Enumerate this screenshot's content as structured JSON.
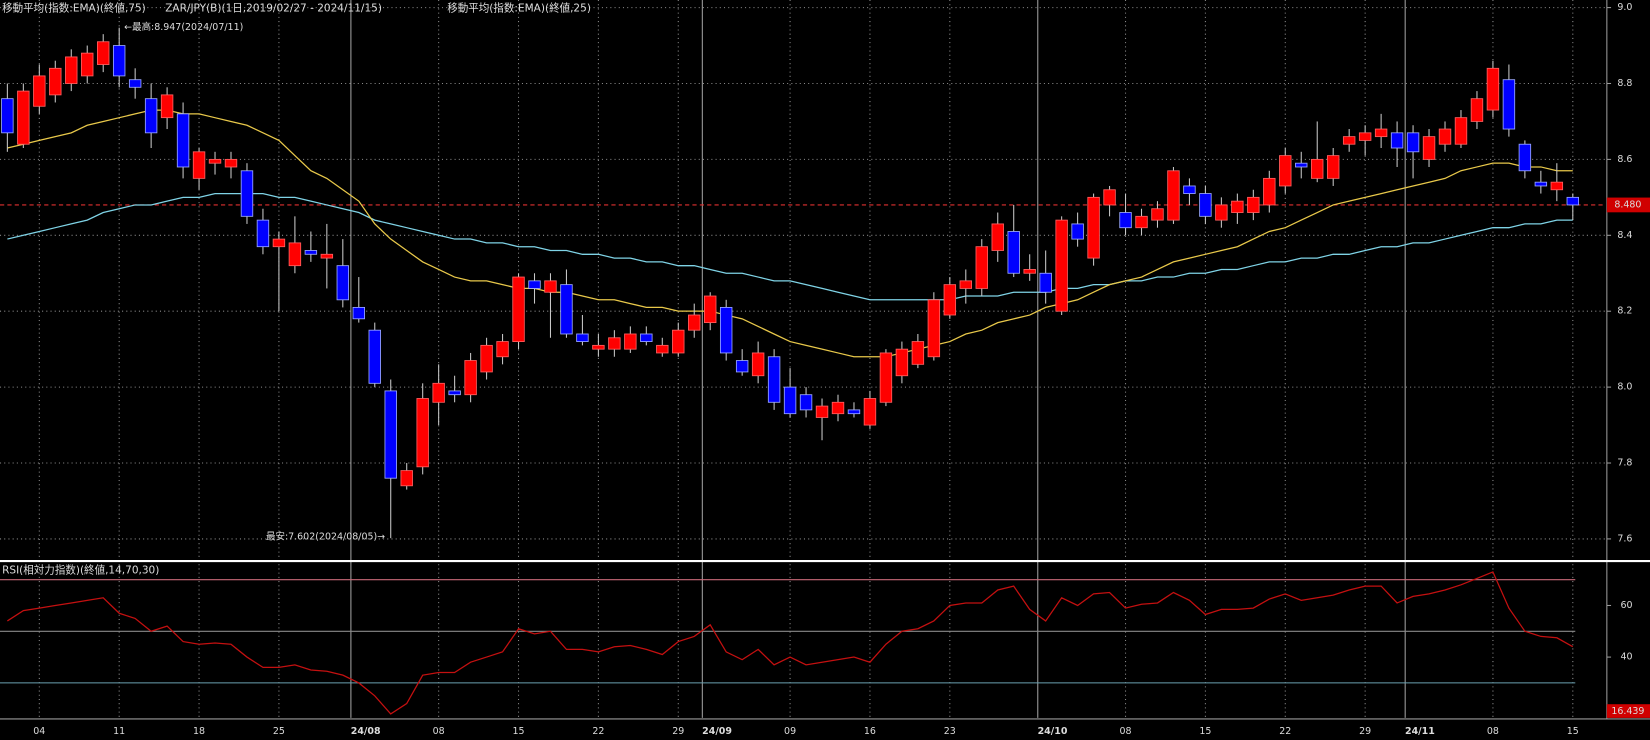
{
  "chart_data": {
    "type": "candlestick",
    "title": "ZAR/JPY(B)(1日,2019/02/27 - 2024/11/15)",
    "annotations": [
      "←最高:8.947(2024/07/11)",
      "最安:7.602(2024/08/05)→"
    ],
    "up_color": "#ff0000",
    "down_color": "#0000ff",
    "grid": true,
    "ylim": [
      7.55,
      9.02
    ],
    "yticks": [
      7.6,
      7.8,
      {
        "value": 8,
        "label": "8.0"
      },
      8.2,
      8.4,
      8.6,
      8.8,
      {
        "value": 9,
        "label": "9.0"
      }
    ],
    "current_price": {
      "value": 8.48,
      "label": "8.480"
    },
    "categories": [
      null,
      null,
      "04",
      null,
      null,
      null,
      null,
      "11",
      null,
      null,
      null,
      null,
      "18",
      null,
      null,
      null,
      null,
      "25",
      null,
      null,
      null,
      null,
      "24/08",
      null,
      null,
      null,
      null,
      "08",
      null,
      null,
      null,
      null,
      "15",
      null,
      null,
      null,
      null,
      "22",
      null,
      null,
      null,
      null,
      "29",
      null,
      "24/09",
      null,
      null,
      null,
      null,
      "09",
      null,
      null,
      null,
      null,
      "16",
      null,
      null,
      null,
      null,
      "23",
      null,
      null,
      null,
      null,
      null,
      "24/10",
      null,
      null,
      null,
      null,
      "08",
      null,
      null,
      null,
      null,
      "15",
      null,
      null,
      null,
      null,
      "22",
      null,
      null,
      null,
      null,
      "29",
      null,
      null,
      "24/11",
      null,
      null,
      null,
      null,
      "08",
      null,
      null,
      null,
      null,
      "15"
    ],
    "open": [
      8.76,
      8.64,
      8.74,
      8.77,
      8.8,
      8.82,
      8.85,
      8.9,
      8.81,
      8.76,
      8.71,
      8.72,
      8.55,
      8.59,
      8.58,
      8.57,
      8.44,
      8.37,
      8.32,
      8.36,
      8.34,
      8.32,
      8.21,
      8.15,
      7.99,
      7.74,
      7.79,
      7.96,
      7.99,
      7.98,
      8.04,
      8.08,
      8.12,
      8.28,
      8.25,
      8.27,
      8.14,
      8.1,
      8.1,
      8.1,
      8.14,
      8.09,
      8.09,
      8.15,
      8.17,
      8.21,
      8.07,
      8.03,
      8.08,
      8.0,
      7.98,
      7.92,
      7.93,
      7.94,
      7.9,
      7.96,
      8.03,
      8.06,
      8.08,
      8.19,
      8.26,
      8.26,
      8.36,
      8.41,
      8.3,
      8.3,
      8.2,
      8.43,
      8.34,
      8.48,
      8.46,
      8.42,
      8.44,
      8.44,
      8.53,
      8.51,
      8.44,
      8.46,
      8.46,
      8.48,
      8.53,
      8.59,
      8.55,
      8.55,
      8.64,
      8.65,
      8.66,
      8.67,
      8.67,
      8.6,
      8.64,
      8.64,
      8.7,
      8.73,
      8.81,
      8.64,
      8.54,
      8.52,
      8.5
    ],
    "high": [
      8.8,
      8.8,
      8.85,
      8.86,
      8.89,
      8.9,
      8.93,
      8.947,
      8.84,
      8.8,
      8.79,
      8.75,
      8.63,
      8.62,
      8.62,
      8.59,
      8.47,
      8.41,
      8.45,
      8.41,
      8.43,
      8.39,
      8.29,
      8.17,
      8.02,
      7.8,
      8.01,
      8.06,
      8.03,
      8.09,
      8.13,
      8.14,
      8.3,
      8.3,
      8.3,
      8.31,
      8.19,
      8.14,
      8.15,
      8.16,
      8.16,
      8.13,
      8.17,
      8.22,
      8.25,
      8.23,
      8.1,
      8.12,
      8.1,
      8.05,
      8.0,
      7.97,
      7.98,
      7.96,
      7.99,
      8.1,
      8.12,
      8.14,
      8.25,
      8.29,
      8.31,
      8.39,
      8.46,
      8.48,
      8.35,
      8.36,
      8.45,
      8.46,
      8.51,
      8.53,
      8.51,
      8.47,
      8.49,
      8.58,
      8.55,
      8.53,
      8.5,
      8.51,
      8.52,
      8.57,
      8.63,
      8.62,
      8.7,
      8.63,
      8.68,
      8.69,
      8.72,
      8.7,
      8.69,
      8.68,
      8.7,
      8.73,
      8.78,
      8.86,
      8.85,
      8.65,
      8.57,
      8.59,
      8.51
    ],
    "low": [
      8.62,
      8.63,
      8.72,
      8.75,
      8.78,
      8.8,
      8.83,
      8.79,
      8.76,
      8.63,
      8.68,
      8.55,
      8.52,
      8.56,
      8.55,
      8.43,
      8.35,
      8.2,
      8.3,
      8.33,
      8.26,
      8.21,
      8.17,
      8.0,
      7.602,
      7.73,
      7.77,
      7.9,
      7.96,
      7.96,
      8.02,
      8.06,
      8.1,
      8.22,
      8.13,
      8.13,
      8.11,
      8.08,
      8.08,
      8.09,
      8.11,
      8.08,
      8.08,
      8.13,
      8.15,
      8.07,
      8.03,
      8.01,
      7.94,
      7.92,
      7.92,
      7.86,
      7.91,
      7.92,
      7.89,
      7.95,
      8.01,
      8.05,
      8.07,
      8.18,
      8.22,
      8.24,
      8.33,
      8.29,
      8.28,
      8.22,
      8.19,
      8.37,
      8.32,
      8.45,
      8.4,
      8.4,
      8.42,
      8.43,
      8.48,
      8.43,
      8.42,
      8.43,
      8.44,
      8.46,
      8.51,
      8.55,
      8.54,
      8.53,
      8.62,
      8.61,
      8.63,
      8.58,
      8.55,
      8.58,
      8.62,
      8.63,
      8.68,
      8.71,
      8.66,
      8.55,
      8.51,
      8.49,
      8.44
    ],
    "close": [
      8.67,
      8.78,
      8.82,
      8.84,
      8.87,
      8.88,
      8.91,
      8.82,
      8.79,
      8.67,
      8.77,
      8.58,
      8.62,
      8.6,
      8.6,
      8.45,
      8.37,
      8.39,
      8.38,
      8.35,
      8.35,
      8.23,
      8.18,
      8.01,
      7.76,
      7.78,
      7.97,
      8.01,
      7.98,
      8.07,
      8.11,
      8.12,
      8.29,
      8.26,
      8.28,
      8.14,
      8.12,
      8.11,
      8.13,
      8.14,
      8.12,
      8.11,
      8.15,
      8.19,
      8.24,
      8.09,
      8.04,
      8.09,
      7.96,
      7.93,
      7.94,
      7.95,
      7.96,
      7.93,
      7.97,
      8.09,
      8.1,
      8.12,
      8.23,
      8.27,
      8.28,
      8.37,
      8.43,
      8.3,
      8.31,
      8.25,
      8.44,
      8.39,
      8.5,
      8.52,
      8.42,
      8.45,
      8.47,
      8.57,
      8.51,
      8.45,
      8.48,
      8.49,
      8.5,
      8.55,
      8.61,
      8.58,
      8.6,
      8.61,
      8.66,
      8.67,
      8.68,
      8.63,
      8.62,
      8.66,
      8.68,
      8.71,
      8.76,
      8.84,
      8.68,
      8.57,
      8.53,
      8.54,
      8.48
    ],
    "series": [
      {
        "name": "移動平均(指数:EMA)(終値,75)",
        "color": "#7fd3e6",
        "values": [
          8.39,
          8.4,
          8.41,
          8.42,
          8.43,
          8.44,
          8.46,
          8.47,
          8.48,
          8.48,
          8.49,
          8.5,
          8.5,
          8.51,
          8.51,
          8.51,
          8.51,
          8.5,
          8.5,
          8.49,
          8.48,
          8.47,
          8.46,
          8.44,
          8.43,
          8.42,
          8.41,
          8.4,
          8.39,
          8.39,
          8.38,
          8.38,
          8.37,
          8.37,
          8.36,
          8.36,
          8.35,
          8.35,
          8.34,
          8.34,
          8.33,
          8.33,
          8.32,
          8.32,
          8.31,
          8.3,
          8.3,
          8.29,
          8.28,
          8.28,
          8.27,
          8.26,
          8.25,
          8.24,
          8.23,
          8.23,
          8.23,
          8.23,
          8.23,
          8.23,
          8.24,
          8.24,
          8.24,
          8.25,
          8.25,
          8.25,
          8.26,
          8.26,
          8.27,
          8.27,
          8.28,
          8.28,
          8.29,
          8.29,
          8.3,
          8.3,
          8.31,
          8.31,
          8.32,
          8.33,
          8.33,
          8.34,
          8.34,
          8.35,
          8.35,
          8.36,
          8.37,
          8.37,
          8.38,
          8.38,
          8.39,
          8.4,
          8.41,
          8.42,
          8.42,
          8.43,
          8.43,
          8.44,
          8.44
        ]
      },
      {
        "name": "移動平均(指数:EMA)(終値,25)",
        "color": "#e8c84a",
        "values": [
          8.63,
          8.64,
          8.65,
          8.66,
          8.67,
          8.69,
          8.7,
          8.71,
          8.72,
          8.73,
          8.73,
          8.72,
          8.72,
          8.71,
          8.7,
          8.69,
          8.67,
          8.65,
          8.61,
          8.57,
          8.55,
          8.52,
          8.49,
          8.43,
          8.39,
          8.36,
          8.33,
          8.31,
          8.29,
          8.28,
          8.28,
          8.27,
          8.26,
          8.26,
          8.25,
          8.25,
          8.24,
          8.23,
          8.23,
          8.22,
          8.21,
          8.21,
          8.2,
          8.2,
          8.2,
          8.19,
          8.18,
          8.16,
          8.14,
          8.12,
          8.11,
          8.1,
          8.09,
          8.08,
          8.08,
          8.08,
          8.09,
          8.1,
          8.11,
          8.12,
          8.14,
          8.15,
          8.17,
          8.18,
          8.19,
          8.21,
          8.22,
          8.23,
          8.25,
          8.27,
          8.28,
          8.29,
          8.31,
          8.33,
          8.34,
          8.35,
          8.36,
          8.37,
          8.39,
          8.41,
          8.42,
          8.44,
          8.46,
          8.48,
          8.49,
          8.5,
          8.51,
          8.52,
          8.53,
          8.54,
          8.55,
          8.57,
          8.58,
          8.59,
          8.59,
          8.58,
          8.58,
          8.57,
          8.57
        ]
      }
    ],
    "rsi": {
      "name": "RSI(相対力指数)(終値,14,70,30)",
      "color": "#c41010",
      "ylim": [
        16.439,
        76.4
      ],
      "yticks": [
        40,
        60
      ],
      "levels": [
        70,
        50,
        30
      ],
      "level_colors": [
        "#c86a78",
        "#8a8a8a",
        "#6aa0b0"
      ],
      "values": [
        54,
        58,
        59,
        60,
        61,
        62,
        63,
        57,
        55,
        50,
        52,
        46,
        45,
        45.5,
        45,
        40,
        36,
        36,
        37,
        35,
        34.5,
        33,
        30,
        25,
        18,
        22,
        33,
        34,
        34,
        38,
        40,
        42,
        51,
        49,
        50,
        43,
        43,
        42,
        44,
        44.5,
        43,
        41,
        46,
        48,
        52.5,
        42,
        39,
        43,
        37,
        40,
        37,
        38,
        39,
        40,
        38,
        45,
        50,
        51,
        54,
        60,
        61,
        61,
        66,
        67.5,
        58.5,
        54,
        63,
        60,
        64.5,
        65,
        59,
        60.5,
        61,
        65,
        62,
        56.5,
        58.5,
        58.5,
        59,
        62.5,
        64.5,
        62,
        63,
        64,
        66,
        67.5,
        67.5,
        61,
        63.5,
        64.5,
        66,
        68,
        70.5,
        73,
        59,
        50,
        48,
        47.5,
        44
      ]
    }
  }
}
